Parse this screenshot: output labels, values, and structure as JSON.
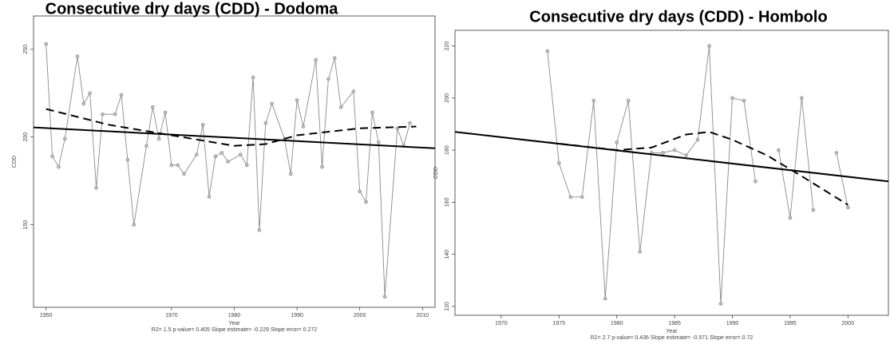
{
  "chart_data": [
    {
      "type": "line",
      "title": "Consecutive dry days (CDD) - Dodoma",
      "x_label": "Year",
      "y_label": "CDD",
      "annotation": "R2= 1.5 p-value= 0.405 Slope estimate= -0.229 Slope error= 0.272",
      "x": [
        1950,
        1951,
        1952,
        1953,
        1955,
        1956,
        1957,
        1958,
        1959,
        1961,
        1962,
        1963,
        1964,
        1966,
        1967,
        1968,
        1969,
        1970,
        1971,
        1972,
        1974,
        1975,
        1976,
        1977,
        1978,
        1979,
        1981,
        1982,
        1983,
        1984,
        1985,
        1986,
        1988,
        1989,
        1990,
        1991,
        1993,
        1994,
        1995,
        1996,
        1997,
        1999,
        2000,
        2001,
        2002,
        2003,
        2004,
        2006,
        2007,
        2008
      ],
      "series": [
        {
          "color": "#8a8a8a",
          "markers": true,
          "values": [
            253,
            189,
            183,
            199,
            246,
            219,
            225,
            171,
            213,
            213,
            224,
            187,
            150,
            195,
            217,
            199,
            214,
            184,
            184,
            179,
            190,
            207,
            166,
            189,
            191,
            186,
            190,
            184,
            234,
            147,
            208,
            219,
            199,
            179,
            221,
            206,
            244,
            183,
            233,
            245,
            217,
            226,
            169,
            163,
            214,
            197,
            109,
            205,
            195,
            208
          ]
        },
        {
          "color": "#000000",
          "x": [
            1948,
            2012
          ],
          "values": [
            205.5,
            193.6
          ]
        },
        {
          "color": "#000000",
          "dash": true,
          "x": [
            1950,
            1960,
            1970,
            1980,
            1985,
            1990,
            2000,
            2009
          ],
          "values": [
            216,
            207,
            201,
            195,
            196,
            201,
            205,
            206
          ]
        }
      ],
      "xlim": [
        1948,
        2012
      ],
      "ylim": [
        103,
        269
      ],
      "xticks": [
        1950,
        1970,
        1980,
        1990,
        2000,
        2010
      ],
      "yticks": [
        150,
        200,
        250
      ]
    },
    {
      "type": "line",
      "title": "Consecutive dry days (CDD) - Hombolo",
      "x_label": "Year",
      "y_label": "CDD",
      "annotation": "R2= 2.7 p-value= 0.436 Slope estimate= -0.571 Slope error= 0.72",
      "x": [
        1974,
        1975,
        1976,
        1977,
        1978,
        1979,
        1980,
        1981,
        1982,
        1983,
        1984,
        1985,
        1986,
        1987,
        1988,
        1989,
        1990,
        1991,
        1992,
        1993,
        1994,
        1995,
        1996,
        1997,
        1998,
        1999,
        2000
      ],
      "series": [
        {
          "color": "#8a8a8a",
          "markers": true,
          "values": [
            218,
            175,
            162,
            162,
            199,
            123,
            183,
            199,
            141,
            179,
            179,
            180,
            178,
            184,
            220,
            121,
            200,
            199,
            168,
            null,
            180,
            154,
            200,
            157,
            null,
            179,
            158
          ]
        },
        {
          "color": "#000000",
          "x": [
            1966,
            2003.5
          ],
          "values": [
            187,
            168
          ]
        },
        {
          "color": "#000000",
          "dash": true,
          "x": [
            1974,
            1976,
            1978,
            1980,
            1983,
            1986,
            1988,
            1990,
            1993,
            1996,
            2000
          ],
          "values": [
            183,
            182,
            181,
            180,
            181,
            186,
            187,
            184,
            178,
            170,
            159
          ]
        }
      ],
      "xlim": [
        1966,
        2003.5
      ],
      "ylim": [
        116.6,
        226
      ],
      "xticks": [
        1970,
        1975,
        1980,
        1985,
        1990,
        1995,
        2000
      ],
      "yticks": [
        120,
        140,
        160,
        180,
        200,
        220
      ]
    }
  ]
}
